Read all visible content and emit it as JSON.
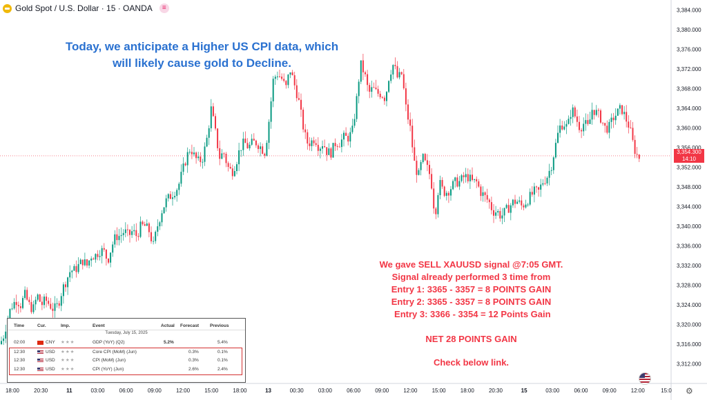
{
  "header": {
    "title": "Gold Spot / U.S. Dollar · 15 · OANDA",
    "badge_icon": "indicator-icon"
  },
  "annotations": {
    "top_line1": "Today, we anticipate a Higher US CPI data, which",
    "top_line2": "will likely cause gold to Decline.",
    "signal_lines": [
      "We gave SELL XAUUSD signal @7:05 GMT.",
      "Signal already performed 3 time from",
      "Entry 1: 3365 - 3357 = 8 POINTS GAIN",
      "Entry 2: 3365 - 3357 = 8 POINTS GAIN",
      " Entry 3: 3366 - 3354 = 12 Points Gain"
    ],
    "net_gain": "NET 28 POINTS GAIN",
    "link_text": "Check below link."
  },
  "price_label": {
    "price": "3,354.300",
    "countdown": "14:10"
  },
  "calendar": {
    "headers": [
      "Time",
      "Cur.",
      "Imp.",
      "Event",
      "Actual",
      "Forecast",
      "Previous"
    ],
    "date": "Tuesday, July 15, 2025",
    "rows": [
      {
        "time": "02:00",
        "cur": "CNY",
        "event": "GDP (YoY) (Q2)",
        "actual": "5.2%",
        "forecast": "",
        "previous": "5.4%"
      },
      {
        "time": "12:30",
        "cur": "USD",
        "event": "Core CPI (MoM) (Jun)",
        "actual": "",
        "forecast": "0.3%",
        "previous": "0.1%"
      },
      {
        "time": "12:30",
        "cur": "USD",
        "event": "CPI (MoM) (Jun)",
        "actual": "",
        "forecast": "0.3%",
        "previous": "0.1%"
      },
      {
        "time": "12:30",
        "cur": "USD",
        "event": "CPI (YoY) (Jun)",
        "actual": "",
        "forecast": "2.6%",
        "previous": "2.4%"
      }
    ],
    "stars": "★★★"
  },
  "chart_data": {
    "type": "candlestick",
    "symbol": "XAUUSD",
    "interval": "15",
    "current_price": 3354.3,
    "ylim": [
      3308,
      3386
    ],
    "y_ticks": [
      "3,384.000",
      "3,380.000",
      "3,376.000",
      "3,372.000",
      "3,368.000",
      "3,364.000",
      "3,360.000",
      "3,356.000",
      "3,352.000",
      "3,348.000",
      "3,344.000",
      "3,340.000",
      "3,336.000",
      "3,332.000",
      "3,328.000",
      "3,324.000",
      "3,320.000",
      "3,316.000",
      "3,312.000"
    ],
    "y_tick_values": [
      3384,
      3380,
      3376,
      3372,
      3368,
      3364,
      3360,
      3356,
      3352,
      3348,
      3344,
      3340,
      3336,
      3332,
      3328,
      3324,
      3320,
      3316,
      3312
    ],
    "x_ticks": [
      "18:00",
      "20:30",
      "11",
      "03:00",
      "06:00",
      "09:00",
      "12:00",
      "15:00",
      "18:00",
      "13",
      "00:30",
      "03:00",
      "06:00",
      "09:00",
      "12:00",
      "15:00",
      "18:00",
      "20:30",
      "15",
      "03:00",
      "06:00",
      "09:00",
      "12:00",
      "15:0"
    ],
    "x_tick_bold": [
      "11",
      "13",
      "15"
    ],
    "close_path": [
      [
        0,
        3316
      ],
      [
        6,
        3318
      ],
      [
        12,
        3322
      ],
      [
        18,
        3324
      ],
      [
        24,
        3325
      ],
      [
        30,
        3324
      ],
      [
        36,
        3326
      ],
      [
        42,
        3324
      ],
      [
        48,
        3323
      ],
      [
        54,
        3326
      ],
      [
        60,
        3324
      ],
      [
        66,
        3325
      ],
      [
        72,
        3324
      ],
      [
        78,
        3323
      ],
      [
        84,
        3324
      ],
      [
        90,
        3327
      ],
      [
        96,
        3329
      ],
      [
        102,
        3331
      ],
      [
        108,
        3331
      ],
      [
        114,
        3332
      ],
      [
        120,
        3333
      ],
      [
        126,
        3332
      ],
      [
        132,
        3334
      ],
      [
        138,
        3334
      ],
      [
        144,
        3335
      ],
      [
        150,
        3335
      ],
      [
        156,
        3333
      ],
      [
        162,
        3336
      ],
      [
        168,
        3338
      ],
      [
        174,
        3338
      ],
      [
        180,
        3339
      ],
      [
        186,
        3338
      ],
      [
        192,
        3339
      ],
      [
        198,
        3338
      ],
      [
        204,
        3340
      ],
      [
        210,
        3340
      ],
      [
        216,
        3339
      ],
      [
        222,
        3336
      ],
      [
        228,
        3340
      ],
      [
        234,
        3343
      ],
      [
        240,
        3345
      ],
      [
        246,
        3346
      ],
      [
        252,
        3347
      ],
      [
        258,
        3348
      ],
      [
        264,
        3351
      ],
      [
        270,
        3354
      ],
      [
        276,
        3356
      ],
      [
        282,
        3354
      ],
      [
        288,
        3353
      ],
      [
        294,
        3354
      ],
      [
        300,
        3358
      ],
      [
        306,
        3364
      ],
      [
        312,
        3359
      ],
      [
        318,
        3354
      ],
      [
        324,
        3355
      ],
      [
        330,
        3352
      ],
      [
        336,
        3351
      ],
      [
        342,
        3353
      ],
      [
        348,
        3356
      ],
      [
        354,
        3357
      ],
      [
        360,
        3356
      ],
      [
        366,
        3357
      ],
      [
        372,
        3357
      ],
      [
        378,
        3356
      ],
      [
        384,
        3355
      ],
      [
        390,
        3362
      ],
      [
        396,
        3370
      ],
      [
        402,
        3371
      ],
      [
        408,
        3370
      ],
      [
        414,
        3368
      ],
      [
        420,
        3372
      ],
      [
        426,
        3369
      ],
      [
        432,
        3366
      ],
      [
        438,
        3361
      ],
      [
        444,
        3357
      ],
      [
        450,
        3357
      ],
      [
        456,
        3358
      ],
      [
        462,
        3356
      ],
      [
        468,
        3357
      ],
      [
        474,
        3355
      ],
      [
        480,
        3355
      ],
      [
        486,
        3357
      ],
      [
        492,
        3357
      ],
      [
        498,
        3358
      ],
      [
        504,
        3358
      ],
      [
        510,
        3359
      ],
      [
        516,
        3365
      ],
      [
        522,
        3373
      ],
      [
        528,
        3371
      ],
      [
        534,
        3367
      ],
      [
        540,
        3368
      ],
      [
        546,
        3367
      ],
      [
        552,
        3367
      ],
      [
        558,
        3366
      ],
      [
        564,
        3371
      ],
      [
        570,
        3373
      ],
      [
        576,
        3370
      ],
      [
        582,
        3371
      ],
      [
        588,
        3364
      ],
      [
        594,
        3360
      ],
      [
        600,
        3353
      ],
      [
        606,
        3350
      ],
      [
        612,
        3354
      ],
      [
        618,
        3352
      ],
      [
        624,
        3350
      ],
      [
        630,
        3342
      ],
      [
        636,
        3349
      ],
      [
        642,
        3347
      ],
      [
        648,
        3347
      ],
      [
        654,
        3348
      ],
      [
        660,
        3349
      ],
      [
        666,
        3349
      ],
      [
        672,
        3350
      ],
      [
        678,
        3350
      ],
      [
        684,
        3349
      ],
      [
        690,
        3349
      ],
      [
        696,
        3347
      ],
      [
        702,
        3346
      ],
      [
        708,
        3345
      ],
      [
        714,
        3343
      ],
      [
        720,
        3343
      ],
      [
        726,
        3342
      ],
      [
        732,
        3343
      ],
      [
        738,
        3344
      ],
      [
        744,
        3345
      ],
      [
        750,
        3345
      ],
      [
        756,
        3344
      ],
      [
        762,
        3345
      ],
      [
        768,
        3346
      ],
      [
        774,
        3347
      ],
      [
        780,
        3347
      ],
      [
        786,
        3349
      ],
      [
        792,
        3350
      ],
      [
        798,
        3352
      ],
      [
        804,
        3356
      ],
      [
        810,
        3360
      ],
      [
        816,
        3361
      ],
      [
        822,
        3360
      ],
      [
        828,
        3364
      ],
      [
        834,
        3362
      ],
      [
        840,
        3360
      ],
      [
        846,
        3361
      ],
      [
        852,
        3360
      ],
      [
        858,
        3364
      ],
      [
        864,
        3363
      ],
      [
        870,
        3362
      ],
      [
        876,
        3360
      ],
      [
        882,
        3360
      ],
      [
        888,
        3362
      ],
      [
        894,
        3363
      ],
      [
        900,
        3364
      ],
      [
        906,
        3362
      ],
      [
        912,
        3360
      ],
      [
        918,
        3356
      ],
      [
        924,
        3354
      ]
    ]
  }
}
